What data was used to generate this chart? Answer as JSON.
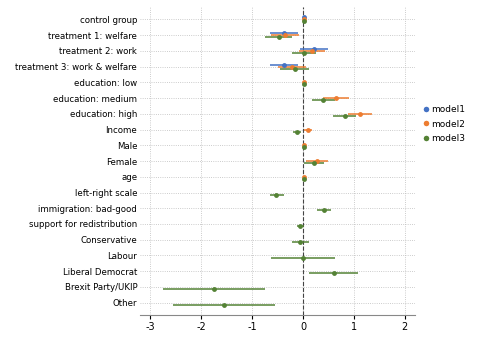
{
  "categories": [
    "control group",
    "treatment 1: welfare",
    "treatment 2: work",
    "treatment 3: work & welfare",
    "education: low",
    "education: medium",
    "education: high",
    "Income",
    "Male",
    "Female",
    "age",
    "left-right scale",
    "immigration: bad-good",
    "support for redistribution",
    "Conservative",
    "Labour",
    "Liberal Democrat",
    "Brexit Party/UKIP",
    "Other"
  ],
  "model1": {
    "coef": [
      0.02,
      -0.38,
      0.22,
      -0.38,
      null,
      null,
      null,
      null,
      null,
      null,
      null,
      null,
      null,
      null,
      null,
      null,
      null,
      null,
      null
    ],
    "ci_low": [
      0.02,
      -0.65,
      -0.05,
      -0.65,
      null,
      null,
      null,
      null,
      null,
      null,
      null,
      null,
      null,
      null,
      null,
      null,
      null,
      null,
      null
    ],
    "ci_high": [
      0.02,
      -0.1,
      0.5,
      -0.1,
      null,
      null,
      null,
      null,
      null,
      null,
      null,
      null,
      null,
      null,
      null,
      null,
      null,
      null,
      null
    ]
  },
  "model2": {
    "coef": [
      0.02,
      -0.35,
      0.18,
      -0.22,
      0.02,
      0.65,
      1.12,
      0.1,
      0.03,
      0.28,
      0.02,
      null,
      null,
      null,
      null,
      null,
      null,
      null,
      null
    ],
    "ci_low": [
      0.02,
      -0.62,
      -0.08,
      -0.5,
      0.02,
      0.4,
      0.88,
      0.02,
      0.01,
      0.05,
      0.01,
      null,
      null,
      null,
      null,
      null,
      null,
      null,
      null
    ],
    "ci_high": [
      0.02,
      -0.08,
      0.44,
      0.05,
      0.02,
      0.9,
      1.36,
      0.18,
      0.05,
      0.5,
      0.03,
      null,
      null,
      null,
      null,
      null,
      null,
      null,
      null
    ]
  },
  "model3": {
    "coef": [
      0.02,
      -0.48,
      0.02,
      -0.15,
      0.02,
      0.4,
      0.82,
      -0.12,
      0.03,
      0.22,
      0.02,
      -0.52,
      0.42,
      -0.05,
      -0.05,
      0.0,
      0.6,
      -1.75,
      -1.55
    ],
    "ci_low": [
      0.0,
      -0.75,
      -0.22,
      -0.45,
      0.0,
      0.18,
      0.58,
      -0.2,
      0.0,
      0.02,
      0.0,
      -0.65,
      0.28,
      -0.12,
      -0.22,
      -0.62,
      0.12,
      -2.75,
      -2.55
    ],
    "ci_high": [
      0.04,
      -0.22,
      0.26,
      0.12,
      0.04,
      0.62,
      1.05,
      -0.04,
      0.06,
      0.42,
      0.04,
      -0.38,
      0.55,
      0.02,
      0.12,
      0.62,
      1.08,
      -0.75,
      -0.55
    ]
  },
  "colors": {
    "model1": "#4472C4",
    "model2": "#ED7D31",
    "model3": "#548235"
  },
  "offsets": {
    "model1": 0.13,
    "model2": 0.0,
    "model3": -0.13
  },
  "xlim": [
    -3.2,
    2.2
  ],
  "xticks": [
    -3,
    -2,
    -1,
    0,
    1,
    2
  ],
  "background_color": "#ffffff",
  "grid_color": "#bbbbbb"
}
